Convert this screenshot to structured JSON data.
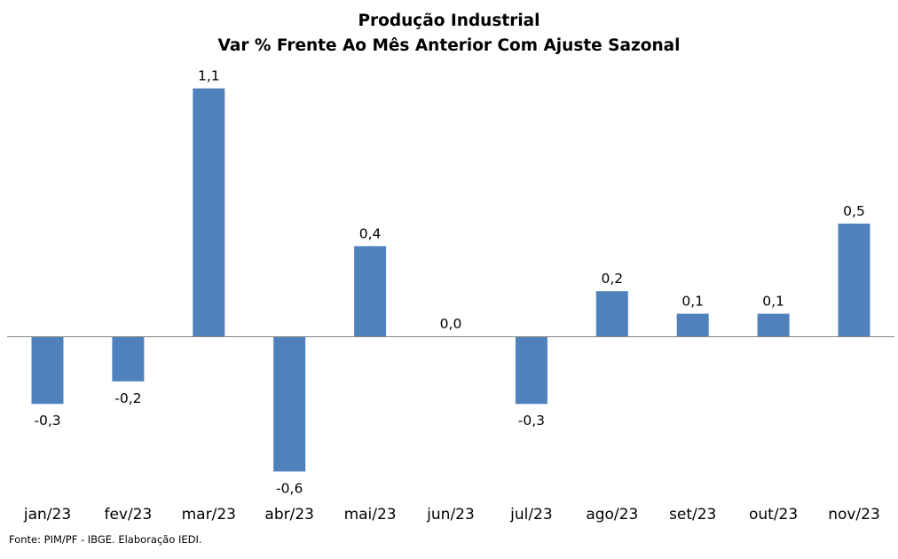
{
  "chart_data": {
    "type": "bar",
    "title": "Produção Industrial",
    "subtitle": "Var % Frente Ao Mês Anterior Com Ajuste Sazonal",
    "categories": [
      "jan/23",
      "fev/23",
      "mar/23",
      "abr/23",
      "mai/23",
      "jun/23",
      "jul/23",
      "ago/23",
      "set/23",
      "out/23",
      "nov/23"
    ],
    "values": [
      -0.3,
      -0.2,
      1.1,
      -0.6,
      0.4,
      0.0,
      -0.3,
      0.2,
      0.1,
      0.1,
      0.5
    ],
    "data_labels": [
      "-0,3",
      "-0,2",
      "1,1",
      "-0,6",
      "0,4",
      "0,0",
      "-0,3",
      "0,2",
      "0,1",
      "0,1",
      "0,5"
    ],
    "xlabel": "",
    "ylabel": "",
    "ylim": [
      -0.6,
      1.1
    ],
    "grid": false,
    "legend": "none",
    "bar_color": "#4f81bd",
    "axis_color": "#868686"
  },
  "footer": {
    "source": "Fonte: PIM/PF - IBGE. Elaboração IEDI."
  }
}
